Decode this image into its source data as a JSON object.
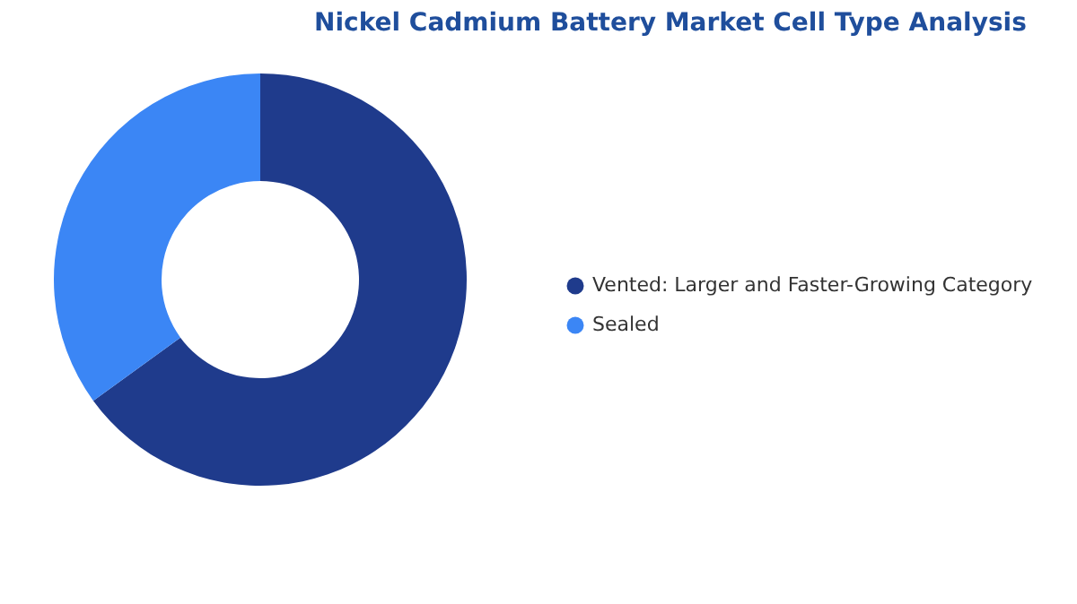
{
  "chart_data": {
    "type": "donut",
    "title": "Nickel Cadmium Battery Market Cell Type Analysis",
    "categories": [
      "Vented:  Larger and Faster-Growing Category",
      "Sealed"
    ],
    "values": [
      65,
      35
    ],
    "colors": [
      "#1f3b8c",
      "#3b86f5"
    ],
    "legend": "right"
  }
}
